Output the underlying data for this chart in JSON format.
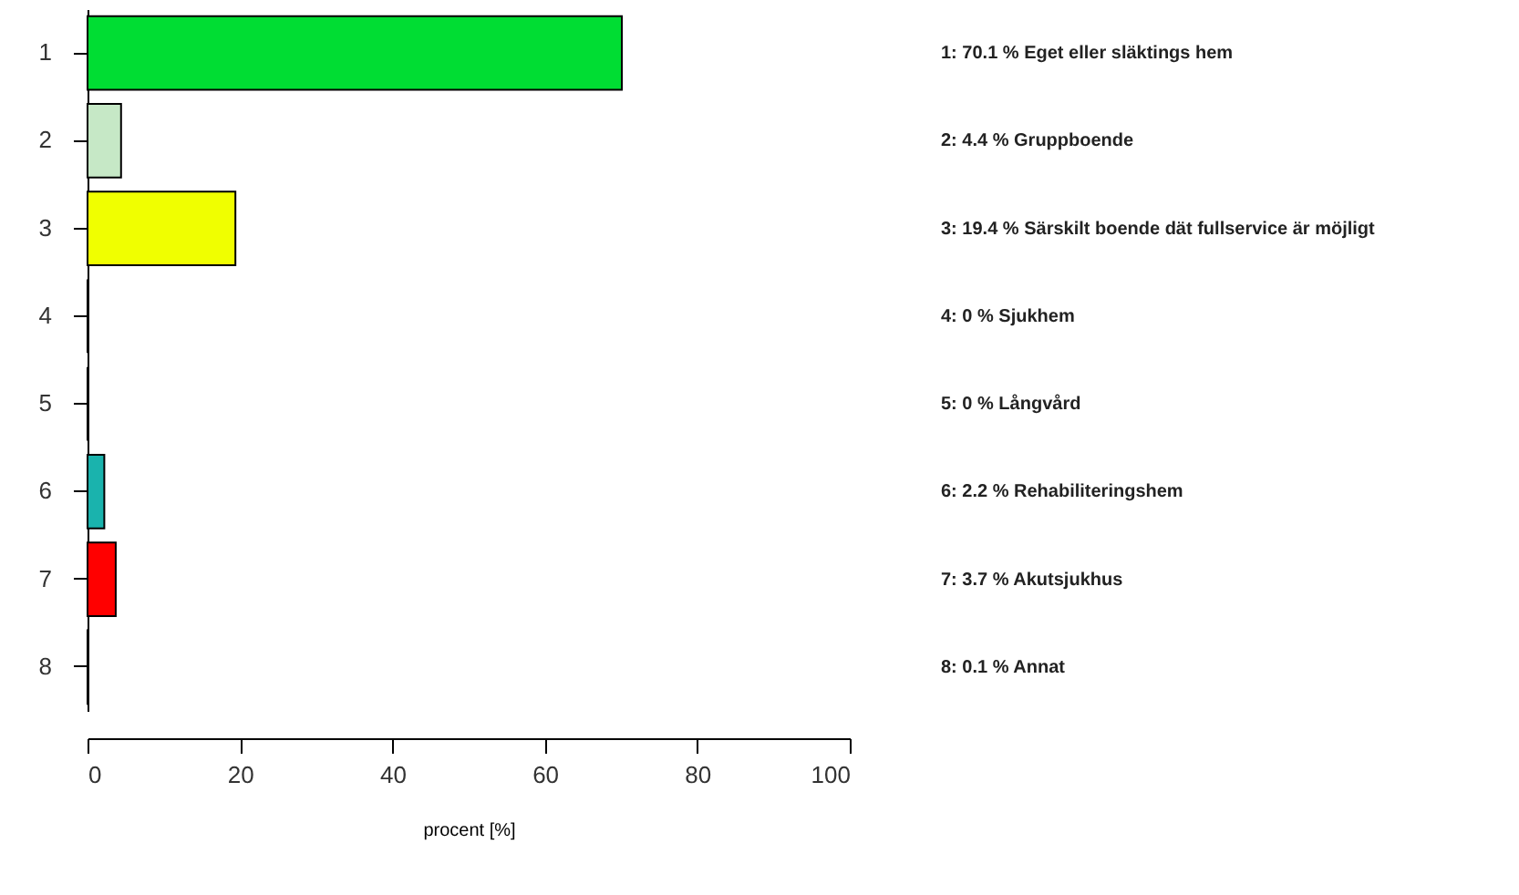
{
  "chart_data": {
    "type": "bar",
    "orientation": "horizontal",
    "xlabel": "procent [%]",
    "categories": [
      "1",
      "2",
      "3",
      "4",
      "5",
      "6",
      "7",
      "8"
    ],
    "values": [
      70.1,
      4.4,
      19.4,
      0,
      0,
      2.2,
      3.7,
      0.1
    ],
    "colors": [
      "#00dd33",
      "#c6e8c6",
      "#f0ff00",
      null,
      null,
      "#1ab3ad",
      "#ff0000",
      null
    ],
    "annotations": [
      "1: 70.1 % Eget eller släktings hem",
      "2: 4.4 % Gruppboende",
      "3: 19.4 % Särskilt boende dät fullservice är möjligt",
      "4: 0 % Sjukhem",
      "5: 0 % Långvård",
      "6: 2.2 % Rehabiliteringshem",
      "7: 3.7 % Akutsjukhus",
      "8: 0.1 % Annat"
    ],
    "xlim": [
      0,
      100
    ],
    "xticks": [
      0,
      20,
      40,
      60,
      80,
      100
    ],
    "grid": false
  }
}
